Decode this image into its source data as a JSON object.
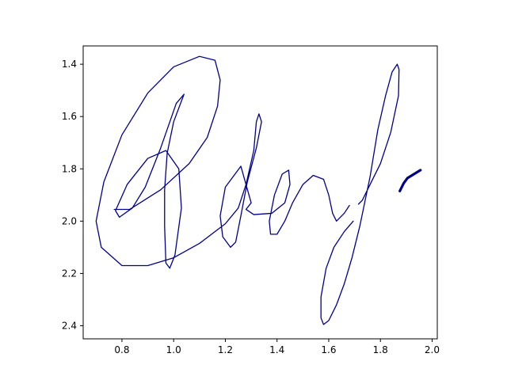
{
  "chart_data": {
    "type": "line",
    "title": "",
    "xlabel": "",
    "ylabel": "",
    "xlim": [
      0.65,
      2.02
    ],
    "ylim": [
      2.45,
      1.33
    ],
    "y_inverted": true,
    "grid": false,
    "x_ticks": [
      0.8,
      1.0,
      1.2,
      1.4,
      1.6,
      1.8,
      2.0
    ],
    "x_tick_labels": [
      "0.8",
      "1.0",
      "1.2",
      "1.4",
      "1.6",
      "1.8",
      "2.0"
    ],
    "y_ticks": [
      1.4,
      1.6,
      1.8,
      2.0,
      2.2,
      2.4
    ],
    "y_tick_labels": [
      "1.4",
      "1.6",
      "1.8",
      "2.0",
      "2.2",
      "2.4"
    ],
    "line_color": "#00008b",
    "series": [
      {
        "points": [
          [
            1.04,
            1.515
          ],
          [
            1.0,
            1.62
          ],
          [
            0.975,
            1.74
          ],
          [
            0.965,
            1.88
          ],
          [
            0.965,
            2.02
          ],
          [
            0.97,
            2.16
          ],
          [
            0.985,
            2.18
          ],
          [
            1.005,
            2.13
          ],
          [
            1.03,
            1.95
          ],
          [
            1.02,
            1.8
          ],
          [
            0.97,
            1.73
          ],
          [
            0.9,
            1.76
          ],
          [
            0.82,
            1.86
          ],
          [
            0.775,
            1.96
          ],
          [
            0.79,
            1.985
          ],
          [
            0.84,
            1.95
          ],
          [
            0.89,
            1.87
          ],
          [
            0.95,
            1.72
          ],
          [
            1.01,
            1.55
          ],
          [
            1.04,
            1.515
          ]
        ]
      },
      {
        "points": [
          [
            0.77,
            1.955
          ],
          [
            0.83,
            1.955
          ],
          [
            0.95,
            1.88
          ],
          [
            1.06,
            1.78
          ],
          [
            1.13,
            1.68
          ],
          [
            1.17,
            1.56
          ],
          [
            1.18,
            1.46
          ],
          [
            1.16,
            1.385
          ],
          [
            1.1,
            1.37
          ],
          [
            1.0,
            1.41
          ],
          [
            0.9,
            1.51
          ],
          [
            0.8,
            1.67
          ],
          [
            0.73,
            1.85
          ],
          [
            0.7,
            2.0
          ],
          [
            0.72,
            2.1
          ],
          [
            0.8,
            2.17
          ],
          [
            0.9,
            2.17
          ],
          [
            1.0,
            2.14
          ],
          [
            1.1,
            2.085
          ],
          [
            1.2,
            2.01
          ],
          [
            1.25,
            1.95
          ],
          [
            1.28,
            1.86
          ],
          [
            1.31,
            1.73
          ],
          [
            1.32,
            1.62
          ],
          [
            1.33,
            1.59
          ],
          [
            1.34,
            1.62
          ],
          [
            1.32,
            1.72
          ],
          [
            1.285,
            1.85
          ],
          [
            1.26,
            1.98
          ],
          [
            1.24,
            2.08
          ],
          [
            1.22,
            2.1
          ],
          [
            1.19,
            2.06
          ],
          [
            1.18,
            1.98
          ],
          [
            1.2,
            1.87
          ],
          [
            1.26,
            1.79
          ],
          [
            1.3,
            1.93
          ],
          [
            1.28,
            1.955
          ],
          [
            1.31,
            1.975
          ],
          [
            1.38,
            1.97
          ],
          [
            1.43,
            1.93
          ],
          [
            1.45,
            1.86
          ],
          [
            1.445,
            1.805
          ],
          [
            1.42,
            1.82
          ],
          [
            1.39,
            1.9
          ],
          [
            1.37,
            2.0
          ],
          [
            1.375,
            2.05
          ],
          [
            1.4,
            2.05
          ],
          [
            1.43,
            2.0
          ],
          [
            1.46,
            1.93
          ],
          [
            1.5,
            1.86
          ],
          [
            1.54,
            1.825
          ],
          [
            1.58,
            1.84
          ],
          [
            1.6,
            1.9
          ],
          [
            1.615,
            1.97
          ],
          [
            1.63,
            2.0
          ],
          [
            1.66,
            1.97
          ],
          [
            1.68,
            1.94
          ]
        ]
      },
      {
        "points": [
          [
            1.695,
            2.0
          ],
          [
            1.66,
            2.04
          ],
          [
            1.62,
            2.1
          ],
          [
            1.59,
            2.18
          ],
          [
            1.57,
            2.29
          ],
          [
            1.57,
            2.37
          ],
          [
            1.58,
            2.395
          ],
          [
            1.6,
            2.38
          ],
          [
            1.63,
            2.32
          ],
          [
            1.66,
            2.24
          ],
          [
            1.69,
            2.14
          ],
          [
            1.72,
            2.02
          ],
          [
            1.76,
            1.83
          ],
          [
            1.79,
            1.65
          ],
          [
            1.82,
            1.52
          ],
          [
            1.845,
            1.43
          ],
          [
            1.865,
            1.4
          ],
          [
            1.872,
            1.42
          ],
          [
            1.87,
            1.52
          ],
          [
            1.84,
            1.66
          ],
          [
            1.8,
            1.78
          ],
          [
            1.76,
            1.86
          ],
          [
            1.73,
            1.92
          ],
          [
            1.715,
            1.935
          ]
        ]
      },
      {
        "points": [
          [
            1.875,
            1.885
          ],
          [
            1.89,
            1.855
          ],
          [
            1.905,
            1.835
          ],
          [
            1.93,
            1.82
          ],
          [
            1.955,
            1.805
          ]
        ],
        "bold": true
      }
    ]
  }
}
